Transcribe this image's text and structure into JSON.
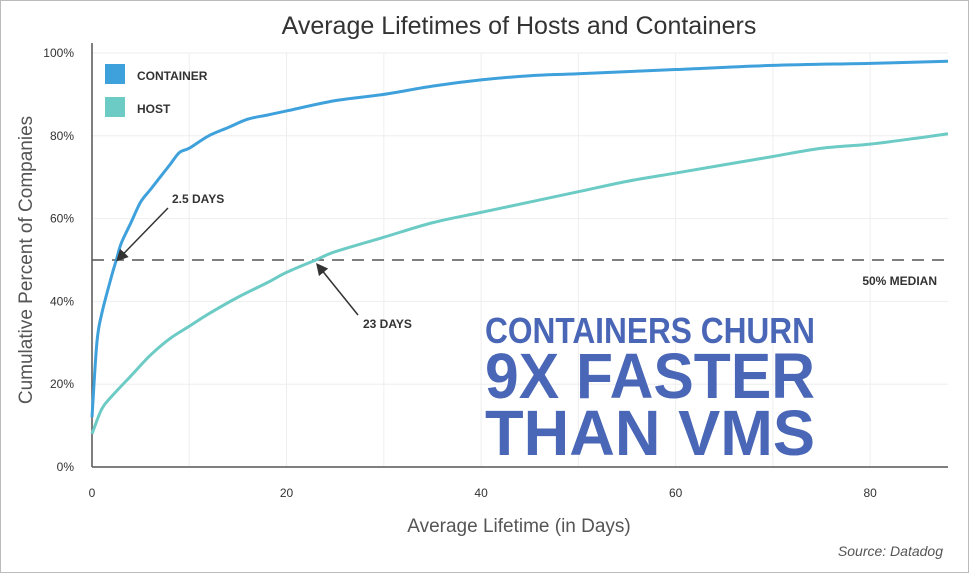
{
  "chart_data": {
    "type": "line",
    "title": "Average Lifetimes of Hosts and Containers",
    "xlabel": "Average Lifetime (in Days)",
    "ylabel": "Cumulative Percent of Companies",
    "xlim": [
      0,
      88
    ],
    "ylim": [
      0,
      100
    ],
    "x_ticks": [
      0,
      20,
      40,
      60,
      80
    ],
    "x_tick_labels": [
      "0",
      "20",
      "40",
      "60",
      "80"
    ],
    "y_ticks": [
      0,
      20,
      40,
      60,
      80,
      100
    ],
    "y_tick_labels": [
      "0%",
      "20%",
      "40%",
      "60%",
      "80%",
      "100%"
    ],
    "grid": true,
    "legend_placement": "top-left",
    "series": [
      {
        "name": "CONTAINER",
        "color": "#3fa1dc",
        "points": [
          [
            0,
            12
          ],
          [
            0.5,
            30
          ],
          [
            1,
            37
          ],
          [
            2,
            46
          ],
          [
            2.5,
            50
          ],
          [
            3,
            54
          ],
          [
            4,
            59
          ],
          [
            5,
            64
          ],
          [
            6,
            67
          ],
          [
            7,
            70
          ],
          [
            8,
            73
          ],
          [
            9,
            76
          ],
          [
            10,
            77
          ],
          [
            12,
            80
          ],
          [
            14,
            82
          ],
          [
            16,
            84
          ],
          [
            18,
            85
          ],
          [
            20,
            86
          ],
          [
            25,
            88.5
          ],
          [
            30,
            90
          ],
          [
            35,
            92
          ],
          [
            40,
            93.5
          ],
          [
            45,
            94.5
          ],
          [
            50,
            95
          ],
          [
            60,
            96
          ],
          [
            70,
            97
          ],
          [
            80,
            97.5
          ],
          [
            88,
            98
          ]
        ]
      },
      {
        "name": "HOST",
        "color": "#6ccbc5",
        "points": [
          [
            0,
            8
          ],
          [
            1,
            14
          ],
          [
            2,
            17
          ],
          [
            4,
            22
          ],
          [
            6,
            27
          ],
          [
            8,
            31
          ],
          [
            10,
            34
          ],
          [
            12,
            37
          ],
          [
            15,
            41
          ],
          [
            18,
            44.5
          ],
          [
            20,
            47
          ],
          [
            23,
            50
          ],
          [
            25,
            52
          ],
          [
            30,
            55.5
          ],
          [
            35,
            59
          ],
          [
            40,
            61.5
          ],
          [
            45,
            64
          ],
          [
            50,
            66.5
          ],
          [
            55,
            69
          ],
          [
            60,
            71
          ],
          [
            65,
            73
          ],
          [
            70,
            75
          ],
          [
            75,
            77
          ],
          [
            80,
            78
          ],
          [
            85,
            79.5
          ],
          [
            88,
            80.5
          ]
        ]
      }
    ],
    "reference_line": {
      "y": 50,
      "label": "50% MEDIAN"
    },
    "annotations": [
      {
        "text": "2.5 DAYS",
        "x": 2.5,
        "y": 50
      },
      {
        "text": "23 DAYS",
        "x": 23,
        "y": 50
      }
    ],
    "headline": [
      "CONTAINERS CHURN",
      "9X FASTER",
      "THAN VMS"
    ],
    "headline_color": "#4a66b6",
    "source": "Source: Datadog"
  }
}
